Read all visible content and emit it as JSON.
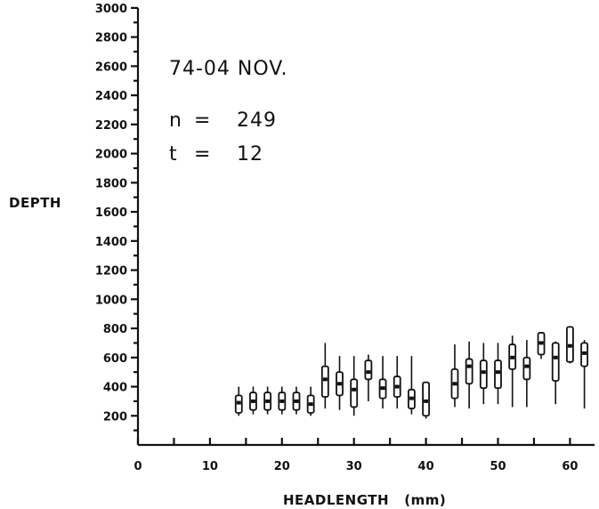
{
  "chart_data": {
    "type": "boxplot",
    "title": "74-04 NOV.",
    "annotations": [
      {
        "label": "n",
        "eq": "=",
        "value": "249"
      },
      {
        "label": "t",
        "eq": "=",
        "value": "12"
      }
    ],
    "xlabel": "HEADLENGTH   (mm)",
    "ylabel": "DEPTH",
    "xlim": [
      0,
      63
    ],
    "ylim": [
      0,
      3000
    ],
    "x_ticks": [
      "0",
      "10",
      "20",
      "30",
      "40",
      "50",
      "60"
    ],
    "y_ticks": [
      "200",
      "400",
      "600",
      "800",
      "1000",
      "1200",
      "1400",
      "1600",
      "1800",
      "2000",
      "2200",
      "2400",
      "2600",
      "2800",
      "3000"
    ],
    "grid": false,
    "boxes": [
      {
        "x": 14,
        "min": 200,
        "q1": 220,
        "median": 290,
        "q3": 340,
        "max": 400
      },
      {
        "x": 16,
        "min": 210,
        "q1": 240,
        "median": 300,
        "q3": 360,
        "max": 400
      },
      {
        "x": 18,
        "min": 210,
        "q1": 240,
        "median": 300,
        "q3": 360,
        "max": 400
      },
      {
        "x": 20,
        "min": 210,
        "q1": 240,
        "median": 300,
        "q3": 360,
        "max": 400
      },
      {
        "x": 22,
        "min": 210,
        "q1": 240,
        "median": 300,
        "q3": 360,
        "max": 400
      },
      {
        "x": 24,
        "min": 200,
        "q1": 220,
        "median": 280,
        "q3": 340,
        "max": 400
      },
      {
        "x": 26,
        "min": 250,
        "q1": 330,
        "median": 450,
        "q3": 540,
        "max": 700
      },
      {
        "x": 28,
        "min": 240,
        "q1": 340,
        "median": 420,
        "q3": 500,
        "max": 610
      },
      {
        "x": 30,
        "min": 200,
        "q1": 260,
        "median": 380,
        "q3": 450,
        "max": 610
      },
      {
        "x": 32,
        "min": 300,
        "q1": 450,
        "median": 500,
        "q3": 580,
        "max": 620
      },
      {
        "x": 34,
        "min": 250,
        "q1": 320,
        "median": 390,
        "q3": 450,
        "max": 610
      },
      {
        "x": 36,
        "min": 250,
        "q1": 330,
        "median": 400,
        "q3": 470,
        "max": 610
      },
      {
        "x": 38,
        "min": 210,
        "q1": 250,
        "median": 320,
        "q3": 380,
        "max": 610
      },
      {
        "x": 40,
        "min": 180,
        "q1": 200,
        "median": 300,
        "q3": 430,
        "max": 430
      },
      {
        "x": 44,
        "min": 260,
        "q1": 320,
        "median": 420,
        "q3": 520,
        "max": 690
      },
      {
        "x": 46,
        "min": 250,
        "q1": 420,
        "median": 540,
        "q3": 590,
        "max": 710
      },
      {
        "x": 48,
        "min": 280,
        "q1": 390,
        "median": 500,
        "q3": 580,
        "max": 700
      },
      {
        "x": 50,
        "min": 280,
        "q1": 390,
        "median": 500,
        "q3": 580,
        "max": 700
      },
      {
        "x": 52,
        "min": 260,
        "q1": 520,
        "median": 600,
        "q3": 690,
        "max": 750
      },
      {
        "x": 54,
        "min": 260,
        "q1": 450,
        "median": 540,
        "q3": 600,
        "max": 720
      },
      {
        "x": 56,
        "min": 590,
        "q1": 620,
        "median": 700,
        "q3": 770,
        "max": 770
      },
      {
        "x": 58,
        "min": 280,
        "q1": 440,
        "median": 600,
        "q3": 700,
        "max": 710
      },
      {
        "x": 60,
        "min": 560,
        "q1": 570,
        "median": 680,
        "q3": 810,
        "max": 810
      },
      {
        "x": 62,
        "min": 250,
        "q1": 540,
        "median": 630,
        "q3": 700,
        "max": 720
      }
    ]
  }
}
